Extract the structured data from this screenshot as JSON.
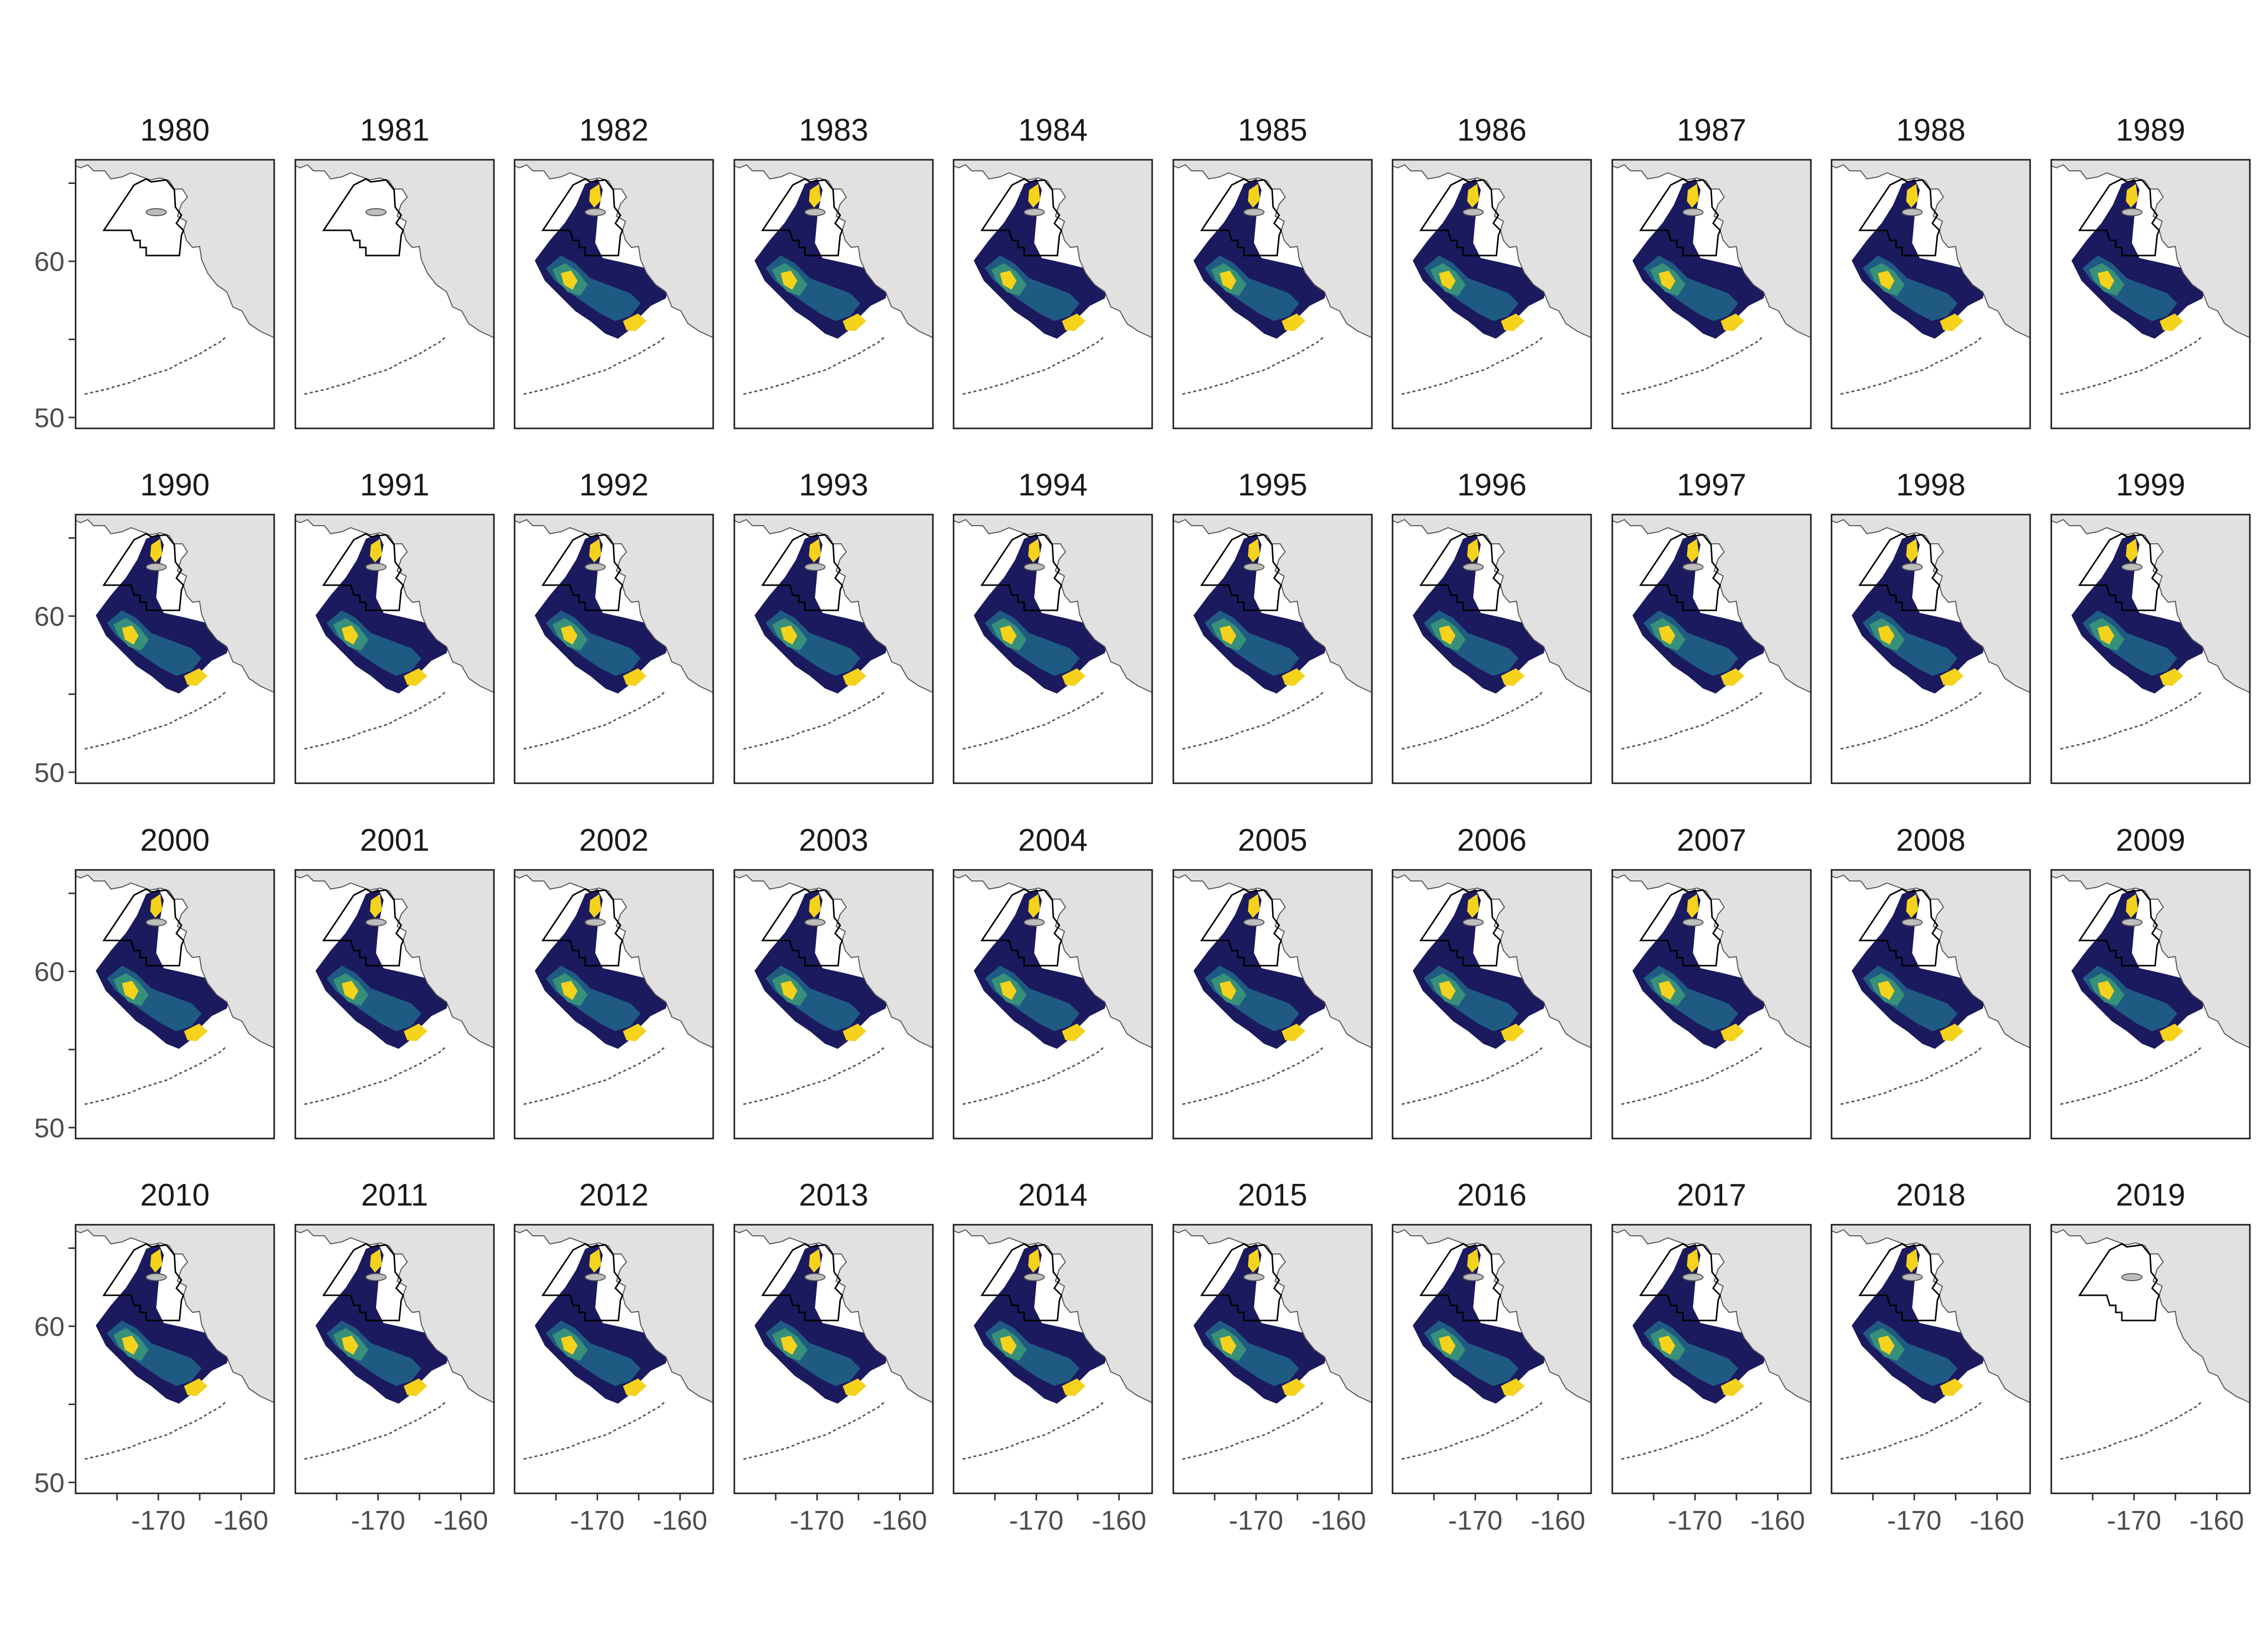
{
  "panels": [
    {
      "year": "1980",
      "shading": false
    },
    {
      "year": "1981",
      "shading": false
    },
    {
      "year": "1982",
      "shading": true
    },
    {
      "year": "1983",
      "shading": true
    },
    {
      "year": "1984",
      "shading": true
    },
    {
      "year": "1985",
      "shading": true
    },
    {
      "year": "1986",
      "shading": true
    },
    {
      "year": "1987",
      "shading": true
    },
    {
      "year": "1988",
      "shading": true
    },
    {
      "year": "1989",
      "shading": true
    },
    {
      "year": "1990",
      "shading": true
    },
    {
      "year": "1991",
      "shading": true
    },
    {
      "year": "1992",
      "shading": true
    },
    {
      "year": "1993",
      "shading": true
    },
    {
      "year": "1994",
      "shading": true
    },
    {
      "year": "1995",
      "shading": true
    },
    {
      "year": "1996",
      "shading": true
    },
    {
      "year": "1997",
      "shading": true
    },
    {
      "year": "1998",
      "shading": true
    },
    {
      "year": "1999",
      "shading": true
    },
    {
      "year": "2000",
      "shading": true
    },
    {
      "year": "2001",
      "shading": true
    },
    {
      "year": "2002",
      "shading": true
    },
    {
      "year": "2003",
      "shading": true
    },
    {
      "year": "2004",
      "shading": true
    },
    {
      "year": "2005",
      "shading": true
    },
    {
      "year": "2006",
      "shading": true
    },
    {
      "year": "2007",
      "shading": true
    },
    {
      "year": "2008",
      "shading": true
    },
    {
      "year": "2009",
      "shading": true
    },
    {
      "year": "2010",
      "shading": true
    },
    {
      "year": "2011",
      "shading": true
    },
    {
      "year": "2012",
      "shading": true
    },
    {
      "year": "2013",
      "shading": true
    },
    {
      "year": "2014",
      "shading": true
    },
    {
      "year": "2015",
      "shading": true
    },
    {
      "year": "2016",
      "shading": true
    },
    {
      "year": "2017",
      "shading": true
    },
    {
      "year": "2018",
      "shading": true
    },
    {
      "year": "2019",
      "shading": false
    }
  ],
  "axes": {
    "y_ticks": [
      {
        "value": 60,
        "label": "60"
      },
      {
        "value": 50,
        "label": "50"
      }
    ],
    "y_minor_ticks": [
      65,
      55
    ],
    "x_ticks": [
      {
        "value": -170,
        "label": "-170"
      },
      {
        "value": -160,
        "label": "-160"
      }
    ],
    "x_minor_ticks": [
      -175,
      -165
    ],
    "xlim": [
      -180,
      -156
    ],
    "ylim": [
      49.3,
      66.5
    ]
  },
  "colors": {
    "land": "#e1e1e1",
    "coast": "#555555",
    "low": "#1b1a5e",
    "mid_low": "#1f5a82",
    "mid_high": "#37907a",
    "high": "#f5d21c",
    "panel_border": "#1a1a1a"
  }
}
